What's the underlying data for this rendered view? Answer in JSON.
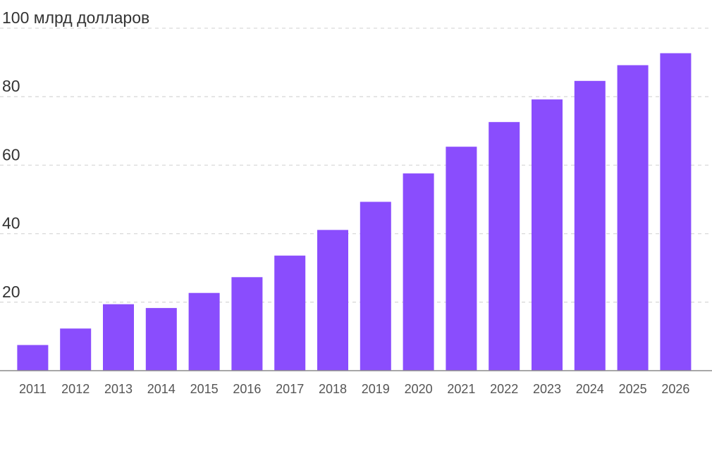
{
  "chart_data": {
    "type": "bar",
    "categories": [
      "2011",
      "2012",
      "2013",
      "2014",
      "2015",
      "2016",
      "2017",
      "2018",
      "2019",
      "2020",
      "2021",
      "2022",
      "2023",
      "2024",
      "2025",
      "2026"
    ],
    "values": [
      7.5,
      12.3,
      19.4,
      18.3,
      22.7,
      27.3,
      33.6,
      41.1,
      49.3,
      57.6,
      65.4,
      72.6,
      79.2,
      84.6,
      89.2,
      92.7
    ],
    "title": "",
    "xlabel": "",
    "ylabel": "",
    "unit_label": "млрд долларов",
    "ylim": [
      0,
      100
    ],
    "yticks": [
      20,
      40,
      60,
      80,
      100
    ],
    "ytick_labels": [
      "20",
      "40",
      "60",
      "80",
      "100 млрд долларов"
    ],
    "grid": true,
    "legend": "none",
    "colors": {
      "bar": "#8a4dfd",
      "gridline": "#d9d9d9",
      "baseline": "#8c8c8c",
      "ytick_text": "#333333",
      "xtick_text": "#555555"
    }
  }
}
